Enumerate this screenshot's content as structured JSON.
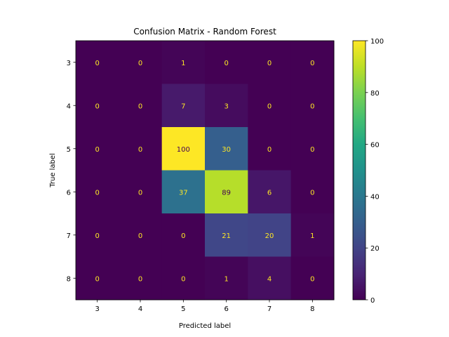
{
  "chart_data": {
    "type": "heatmap",
    "title": "Confusion Matrix - Random Forest",
    "xlabel": "Predicted label",
    "ylabel": "True label",
    "x_categories": [
      "3",
      "4",
      "5",
      "6",
      "7",
      "8"
    ],
    "y_categories": [
      "3",
      "4",
      "5",
      "6",
      "7",
      "8"
    ],
    "values": [
      [
        0,
        0,
        1,
        0,
        0,
        0
      ],
      [
        0,
        0,
        7,
        3,
        0,
        0
      ],
      [
        0,
        0,
        100,
        30,
        0,
        0
      ],
      [
        0,
        0,
        37,
        89,
        6,
        0
      ],
      [
        0,
        0,
        0,
        21,
        20,
        1
      ],
      [
        0,
        0,
        0,
        1,
        4,
        0
      ]
    ],
    "colormap": "viridis",
    "color_range": [
      0,
      100
    ],
    "colorbar_ticks": [
      "0",
      "20",
      "40",
      "60",
      "80",
      "100"
    ],
    "colorbar_tick_values": [
      0,
      20,
      40,
      60,
      80,
      100
    ],
    "text_color_light": "#fde725",
    "text_color_dark": "#440154"
  }
}
